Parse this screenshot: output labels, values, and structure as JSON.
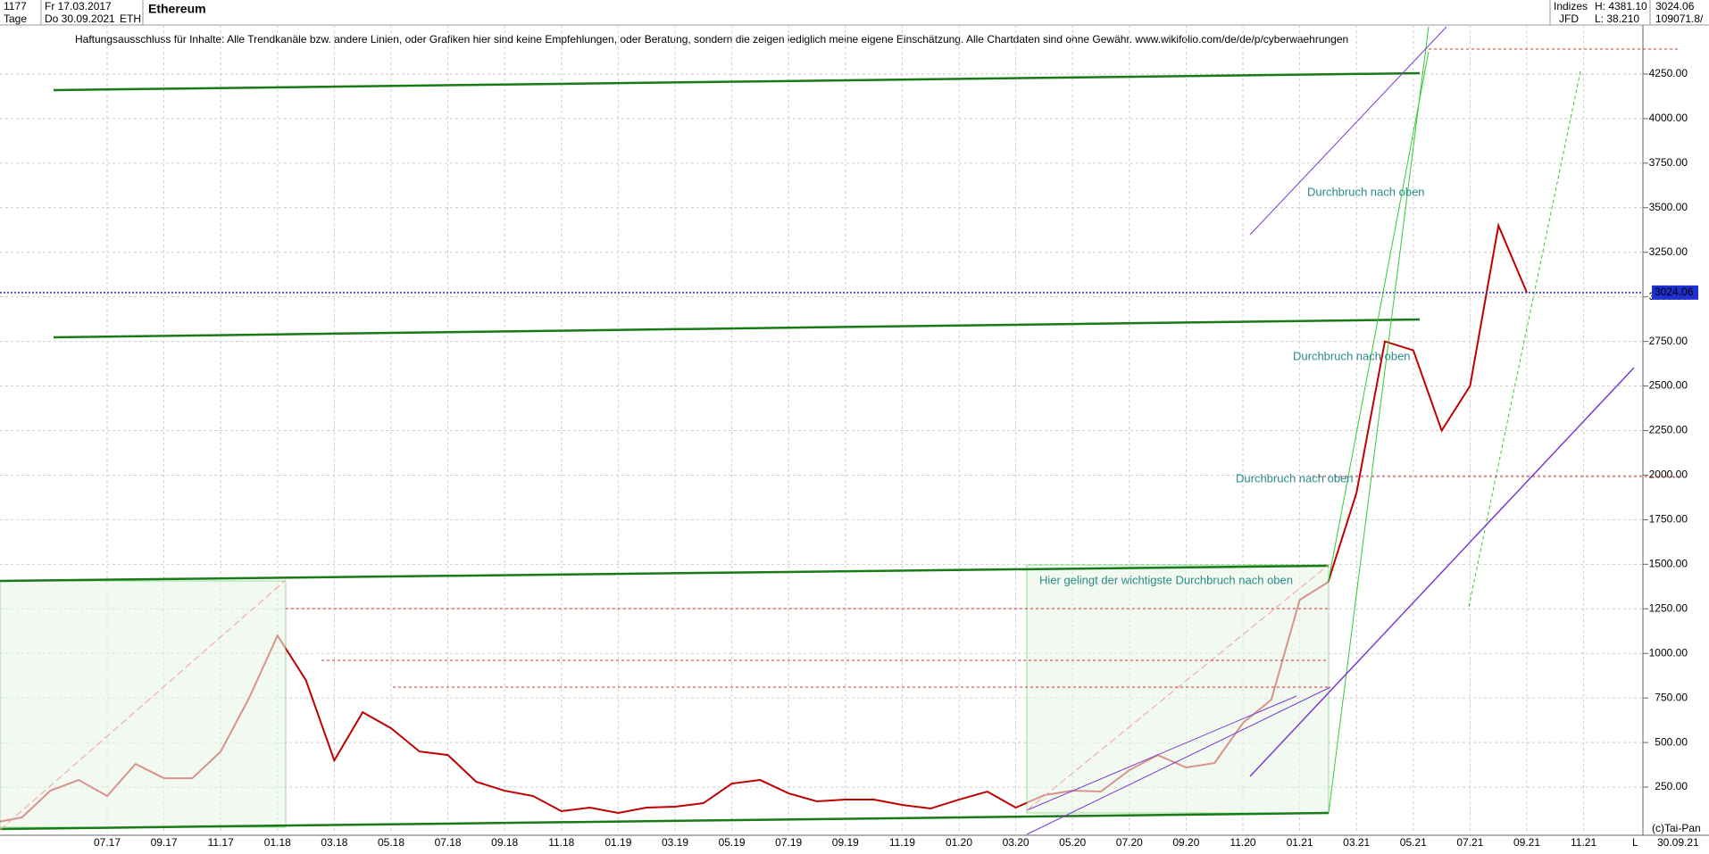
{
  "header": {
    "count": "1177",
    "from": "Fr 17.03.2017",
    "period": "Tage",
    "to": "Do 30.09.2021",
    "symbol": "ETH",
    "name": "Ethereum",
    "market": "Indizes",
    "source": "JFD",
    "high": "H: 4381.10",
    "low": "L: 38.210",
    "last": "3024.06",
    "volume": "109071.8/"
  },
  "disclaimer": "Haftungsausschluss für Inhalte: Alle Trendkanäle bzw. andere Linien, oder Grafiken hier sind keine Empfehlungen, oder Beratung, sondern die zeigen lediglich meine eigene Einschätzung. Alle Chartdaten sind ohne Gewähr.  www.wikifolio.com/de/de/p/cyberwaehrungen",
  "footer": {
    "copyright": "(c)Tai-Pan",
    "date": "30.09.21",
    "scale": "L"
  },
  "chart_data": {
    "type": "line",
    "annotations": [
      "Durchbruch nach oben",
      "Durchbruch nach oben",
      "Durchbruch nach oben",
      "Hier gelingt der wichtigste Durchbruch nach oben"
    ],
    "categories": [
      null,
      null,
      null,
      null,
      "07.17",
      null,
      "09.17",
      null,
      "11.17",
      null,
      "01.18",
      null,
      "03.18",
      null,
      "05.18",
      null,
      "07.18",
      null,
      "09.18",
      null,
      "11.18",
      null,
      "01.19",
      null,
      "03.19",
      null,
      "05.19",
      null,
      "07.19",
      null,
      "09.19",
      null,
      "11.19",
      null,
      "01.20",
      null,
      "03.20",
      null,
      "05.20",
      null,
      "07.20",
      null,
      "09.20",
      null,
      "11.20",
      null,
      "01.21",
      null,
      "03.21",
      null,
      "05.21",
      null,
      "07.21",
      null,
      "09.21",
      null,
      "11.21"
    ],
    "series": [
      {
        "name": "ETH",
        "color": "#c00000",
        "values": [
          50,
          80,
          230,
          290,
          200,
          380,
          300,
          300,
          450,
          750,
          1100,
          850,
          400,
          670,
          580,
          450,
          430,
          280,
          230,
          200,
          115,
          135,
          105,
          135,
          140,
          160,
          270,
          290,
          215,
          170,
          180,
          180,
          150,
          130,
          180,
          225,
          135,
          205,
          230,
          225,
          345,
          430,
          360,
          385,
          610,
          740,
          1300,
          1400,
          1900,
          2750,
          2700,
          2250,
          2500,
          3400,
          3024.06,
          null,
          null
        ]
      }
    ],
    "last_price": 3024.06,
    "ylim": [
      0,
      4525
    ],
    "yticks": [
      {
        "value": 250,
        "label": "250.00"
      },
      {
        "value": 500,
        "label": "500.00"
      },
      {
        "value": 750,
        "label": "750.00"
      },
      {
        "value": 1000,
        "label": "1000.00"
      },
      {
        "value": 1250,
        "label": "1250.00"
      },
      {
        "value": 1500,
        "label": "1500.00"
      },
      {
        "value": 1750,
        "label": "1750.00"
      },
      {
        "value": 2000,
        "label": "2000.00"
      },
      {
        "value": 2250,
        "label": "2250.00"
      },
      {
        "value": 2500,
        "label": "2500.00"
      },
      {
        "value": 2750,
        "label": "2750.00"
      },
      {
        "value": 3000,
        "label": "3000.00"
      },
      {
        "value": 3250,
        "label": "3250.00"
      },
      {
        "value": 3500,
        "label": "3500.00"
      },
      {
        "value": 3750,
        "label": "3750.00"
      },
      {
        "value": 4000,
        "label": "4000.00"
      },
      {
        "value": 4250,
        "label": "4250.00"
      }
    ],
    "grid": true
  }
}
